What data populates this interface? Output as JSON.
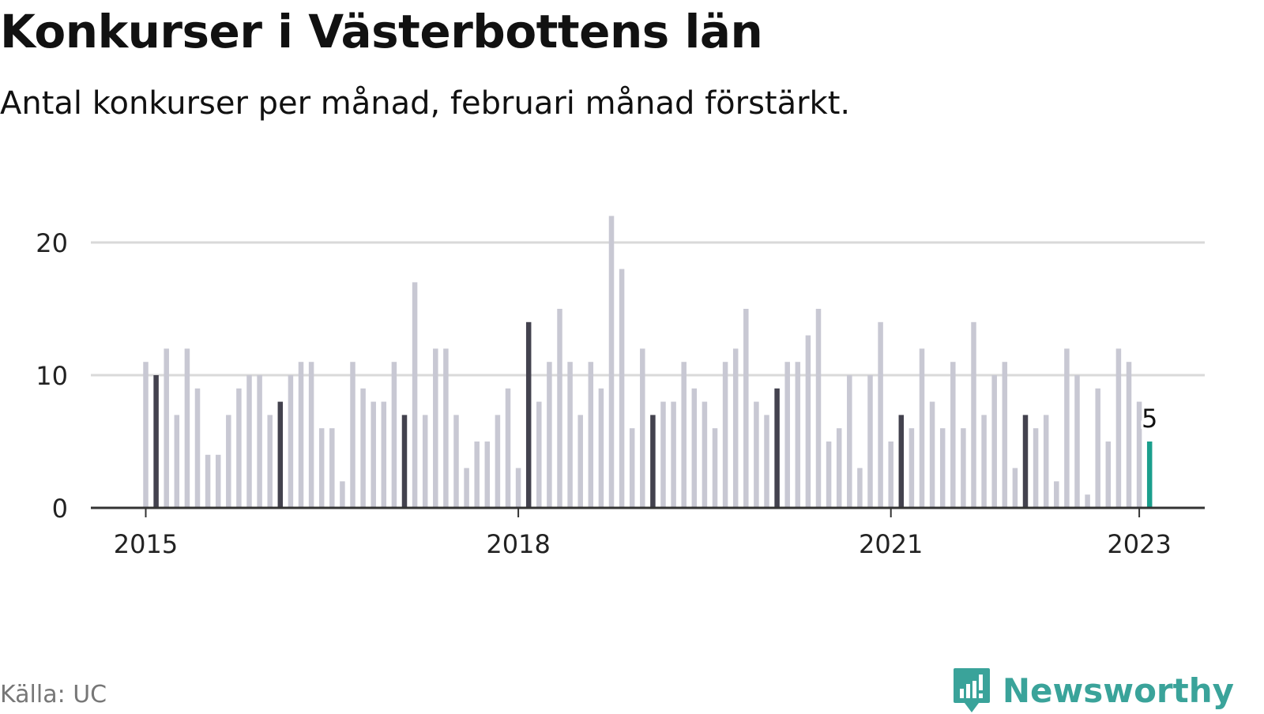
{
  "title": "Konkurser i Västerbottens län",
  "subtitle": "Antal konkurser per månad, februari månad förstärkt.",
  "source": "Källa: UC",
  "brand": "Newsworthy",
  "colors": {
    "bar": "#c8c8d3",
    "february": "#43424e",
    "highlight": "#1a9e8c",
    "grid": "#d9d9d9",
    "axis": "#333333",
    "brand": "#3aa39a"
  },
  "chart_data": {
    "type": "bar",
    "start": "2015-01",
    "ylim": [
      0,
      24
    ],
    "yticks": [
      0,
      10,
      20
    ],
    "xticks": [
      {
        "label": "2015",
        "month_index": 0
      },
      {
        "label": "2018",
        "month_index": 36
      },
      {
        "label": "2021",
        "month_index": 72
      },
      {
        "label": "2023",
        "month_index": 96
      }
    ],
    "values": [
      11,
      10,
      12,
      7,
      12,
      9,
      4,
      4,
      7,
      9,
      10,
      10,
      7,
      8,
      10,
      11,
      11,
      6,
      6,
      2,
      11,
      9,
      8,
      8,
      11,
      7,
      17,
      7,
      12,
      12,
      7,
      3,
      5,
      5,
      7,
      9,
      3,
      14,
      8,
      11,
      15,
      11,
      7,
      11,
      9,
      22,
      18,
      6,
      12,
      7,
      8,
      8,
      11,
      9,
      8,
      6,
      11,
      12,
      15,
      8,
      7,
      9,
      11,
      11,
      13,
      15,
      5,
      6,
      10,
      3,
      10,
      14,
      5,
      7,
      6,
      12,
      8,
      6,
      11,
      6,
      14,
      7,
      10,
      11,
      3,
      7,
      6,
      7,
      2,
      12,
      10,
      1,
      9,
      5,
      12,
      11,
      8,
      5
    ],
    "february_every": 12,
    "highlight_label": "5",
    "grid": true
  }
}
